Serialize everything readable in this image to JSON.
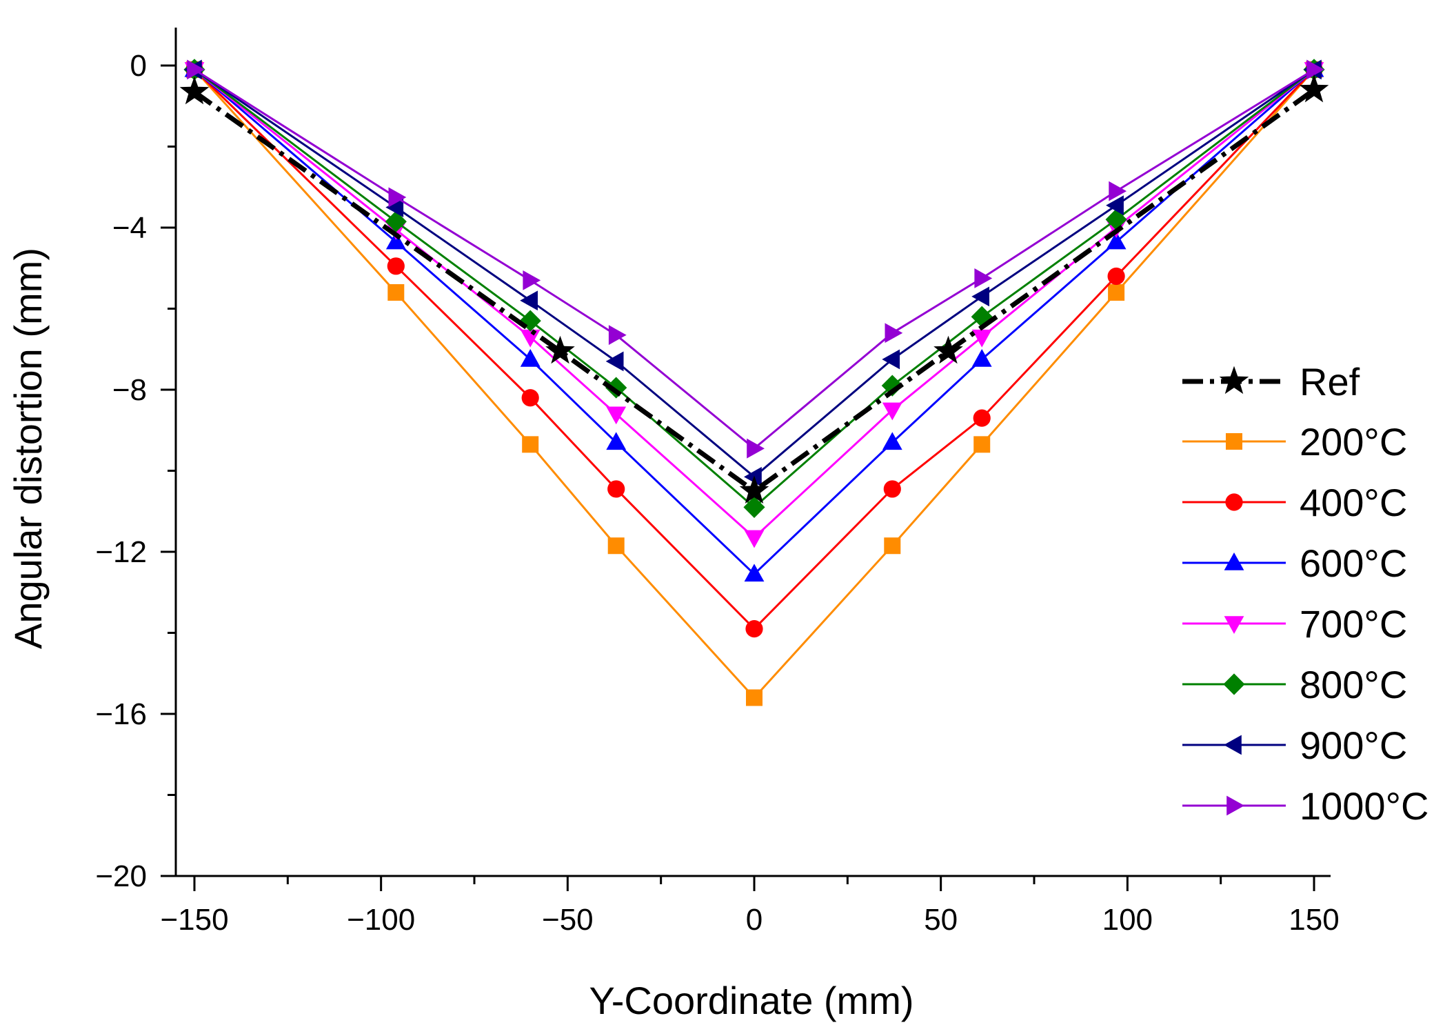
{
  "chart_data": {
    "type": "line",
    "xlabel": "Y-Coordinate (mm)",
    "ylabel": "Angular distortion (mm)",
    "xlim": [
      -155,
      155
    ],
    "ylim": [
      -20,
      1
    ],
    "xticks": [
      -150,
      -100,
      -50,
      0,
      50,
      100,
      150
    ],
    "xtick_labels": [
      "−150",
      "−100",
      "−50",
      "0",
      "50",
      "100",
      "150"
    ],
    "yticks": [
      0,
      -4,
      -8,
      -12,
      -16,
      -20
    ],
    "ytick_labels": [
      "0",
      "−4",
      "−8",
      "−12",
      "−16",
      "−20"
    ],
    "legend_position": "right",
    "grid": false,
    "series": [
      {
        "name": "Ref",
        "color": "#000000",
        "marker": "star",
        "dash": true,
        "x": [
          -150,
          -52,
          0,
          52,
          150
        ],
        "y": [
          -0.65,
          -7.05,
          -10.5,
          -7.05,
          -0.6
        ]
      },
      {
        "name": "200°C",
        "color": "#ff8c00",
        "marker": "square",
        "x": [
          -150,
          -96,
          -60,
          -37,
          0,
          37,
          61,
          97,
          150
        ],
        "y": [
          -0.1,
          -5.6,
          -9.35,
          -11.85,
          -15.6,
          -11.85,
          -9.35,
          -5.6,
          -0.1
        ]
      },
      {
        "name": "400°C",
        "color": "#ff0000",
        "marker": "circle",
        "x": [
          -150,
          -96,
          -60,
          -37,
          0,
          37,
          61,
          97,
          150
        ],
        "y": [
          -0.1,
          -4.95,
          -8.2,
          -10.45,
          -13.9,
          -10.45,
          -8.7,
          -5.2,
          -0.1
        ]
      },
      {
        "name": "600°C",
        "color": "#0000ff",
        "marker": "triangle-up",
        "x": [
          -150,
          -96,
          -60,
          -37,
          0,
          37,
          61,
          97,
          150
        ],
        "y": [
          -0.1,
          -4.35,
          -7.25,
          -9.3,
          -12.55,
          -9.3,
          -7.25,
          -4.35,
          -0.1
        ]
      },
      {
        "name": "700°C",
        "color": "#ff00ff",
        "marker": "triangle-down",
        "x": [
          -150,
          -96,
          -60,
          -37,
          0,
          37,
          61,
          97,
          150
        ],
        "y": [
          -0.1,
          -4.05,
          -6.7,
          -8.6,
          -11.65,
          -8.5,
          -6.7,
          -4.0,
          -0.1
        ]
      },
      {
        "name": "800°C",
        "color": "#008000",
        "marker": "diamond",
        "x": [
          -150,
          -96,
          -60,
          -37,
          0,
          37,
          61,
          97,
          150
        ],
        "y": [
          -0.1,
          -3.85,
          -6.3,
          -7.95,
          -10.9,
          -7.9,
          -6.2,
          -3.8,
          -0.1
        ]
      },
      {
        "name": "900°C",
        "color": "#000080",
        "marker": "triangle-left",
        "x": [
          -150,
          -96,
          -60,
          -37,
          0,
          37,
          61,
          97,
          150
        ],
        "y": [
          -0.1,
          -3.5,
          -5.8,
          -7.3,
          -10.15,
          -7.25,
          -5.7,
          -3.45,
          -0.1
        ]
      },
      {
        "name": "1000°C",
        "color": "#9400d3",
        "marker": "triangle-right",
        "x": [
          -150,
          -96,
          -60,
          -37,
          0,
          37,
          61,
          97,
          150
        ],
        "y": [
          -0.1,
          -3.25,
          -5.3,
          -6.65,
          -9.45,
          -6.6,
          -5.25,
          -3.1,
          -0.1
        ]
      }
    ]
  }
}
